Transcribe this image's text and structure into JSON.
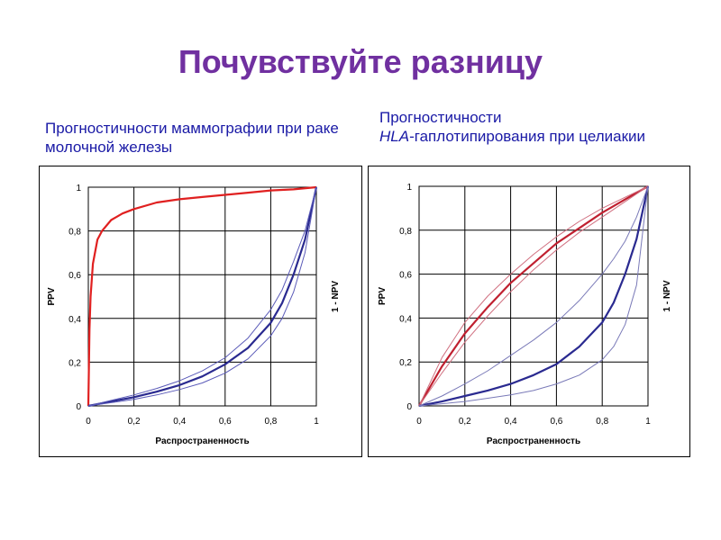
{
  "slide": {
    "title": "Почувствуйте разницу",
    "caption_left": "Прогностичности маммографии при раке молочной железы",
    "caption_right_line1": "Прогностичности",
    "caption_right_em": "HLA",
    "caption_right_rest": "-гаплотипирования при целиакии"
  },
  "colors": {
    "title": "#7030a0",
    "caption": "#1a1aa6",
    "ppv": "#e02020",
    "npv": "#2a2a90"
  },
  "chart_data": [
    {
      "type": "line",
      "xlabel": "Распространенность",
      "ylabel": "PPV",
      "y2label": "1 - NPV",
      "xlim": [
        0,
        1
      ],
      "ylim": [
        0,
        1
      ],
      "x_ticks": [
        "0",
        "0,2",
        "0,4",
        "0,6",
        "0,8",
        "1"
      ],
      "y_ticks": [
        "0",
        "0,2",
        "0,4",
        "0,6",
        "0,8",
        "1"
      ],
      "grid": true,
      "series": [
        {
          "role": "ppv",
          "color": "#e02020",
          "bold": true,
          "x": [
            0,
            0.005,
            0.01,
            0.02,
            0.04,
            0.06,
            0.1,
            0.15,
            0.2,
            0.3,
            0.4,
            0.5,
            0.6,
            0.7,
            0.8,
            0.9,
            1.0
          ],
          "y": [
            0,
            0.35,
            0.5,
            0.65,
            0.76,
            0.8,
            0.85,
            0.88,
            0.9,
            0.93,
            0.945,
            0.955,
            0.965,
            0.975,
            0.985,
            0.99,
            1.0
          ]
        },
        {
          "role": "npv",
          "color": "#2a2a90",
          "bold": true,
          "x": [
            0,
            0.1,
            0.2,
            0.3,
            0.4,
            0.5,
            0.6,
            0.7,
            0.8,
            0.85,
            0.9,
            0.95,
            1.0
          ],
          "y": [
            0,
            0.02,
            0.04,
            0.065,
            0.095,
            0.135,
            0.19,
            0.265,
            0.38,
            0.47,
            0.6,
            0.76,
            1.0
          ]
        },
        {
          "role": "npv-band",
          "color": "#5a5ab8",
          "bold": false,
          "x": [
            0,
            0.1,
            0.2,
            0.3,
            0.4,
            0.5,
            0.6,
            0.7,
            0.8,
            0.85,
            0.9,
            0.95,
            1.0
          ],
          "y": [
            0,
            0.025,
            0.05,
            0.08,
            0.115,
            0.16,
            0.22,
            0.31,
            0.44,
            0.53,
            0.66,
            0.8,
            1.0
          ]
        },
        {
          "role": "npv-band",
          "color": "#5a5ab8",
          "bold": false,
          "x": [
            0,
            0.1,
            0.2,
            0.3,
            0.4,
            0.5,
            0.6,
            0.7,
            0.8,
            0.85,
            0.9,
            0.95,
            1.0
          ],
          "y": [
            0,
            0.015,
            0.03,
            0.05,
            0.075,
            0.105,
            0.15,
            0.215,
            0.32,
            0.4,
            0.52,
            0.7,
            1.0
          ]
        }
      ]
    },
    {
      "type": "line",
      "xlabel": "Распространенность",
      "ylabel": "PPV",
      "y2label": "1 - NPV",
      "xlim": [
        0,
        1
      ],
      "ylim": [
        0,
        1
      ],
      "x_ticks": [
        "0",
        "0,2",
        "0,4",
        "0,6",
        "0,8",
        "1"
      ],
      "y_ticks": [
        "0",
        "0,2",
        "0,4",
        "0,6",
        "0,8",
        "1"
      ],
      "grid": true,
      "series": [
        {
          "role": "ppv",
          "color": "#c02030",
          "bold": true,
          "x": [
            0,
            0.1,
            0.2,
            0.3,
            0.4,
            0.5,
            0.6,
            0.7,
            0.8,
            0.9,
            1.0
          ],
          "y": [
            0,
            0.18,
            0.33,
            0.45,
            0.56,
            0.65,
            0.74,
            0.81,
            0.88,
            0.94,
            1.0
          ]
        },
        {
          "role": "ppv-band",
          "color": "#d07080",
          "bold": false,
          "x": [
            0,
            0.1,
            0.2,
            0.3,
            0.4,
            0.5,
            0.6,
            0.7,
            0.8,
            0.9,
            1.0
          ],
          "y": [
            0,
            0.22,
            0.38,
            0.5,
            0.6,
            0.69,
            0.77,
            0.84,
            0.9,
            0.95,
            1.0
          ]
        },
        {
          "role": "ppv-band",
          "color": "#d07080",
          "bold": false,
          "x": [
            0,
            0.1,
            0.2,
            0.3,
            0.4,
            0.5,
            0.6,
            0.7,
            0.8,
            0.9,
            1.0
          ],
          "y": [
            0,
            0.15,
            0.29,
            0.41,
            0.52,
            0.62,
            0.71,
            0.79,
            0.86,
            0.93,
            1.0
          ]
        },
        {
          "role": "npv",
          "color": "#2a2a90",
          "bold": true,
          "x": [
            0,
            0.1,
            0.2,
            0.3,
            0.4,
            0.5,
            0.6,
            0.7,
            0.8,
            0.85,
            0.9,
            0.95,
            1.0
          ],
          "y": [
            0,
            0.02,
            0.045,
            0.07,
            0.1,
            0.14,
            0.19,
            0.27,
            0.38,
            0.47,
            0.6,
            0.76,
            1.0
          ]
        },
        {
          "role": "npv-band",
          "color": "#7a7ab8",
          "bold": false,
          "x": [
            0,
            0.1,
            0.2,
            0.3,
            0.4,
            0.5,
            0.6,
            0.7,
            0.8,
            0.85,
            0.9,
            0.95,
            1.0
          ],
          "y": [
            0,
            0.045,
            0.1,
            0.16,
            0.23,
            0.3,
            0.38,
            0.48,
            0.6,
            0.67,
            0.75,
            0.86,
            1.0
          ]
        },
        {
          "role": "npv-band",
          "color": "#7a7ab8",
          "bold": false,
          "x": [
            0,
            0.1,
            0.2,
            0.3,
            0.4,
            0.5,
            0.6,
            0.7,
            0.8,
            0.85,
            0.9,
            0.95,
            1.0
          ],
          "y": [
            0,
            0.01,
            0.02,
            0.035,
            0.05,
            0.07,
            0.1,
            0.14,
            0.21,
            0.27,
            0.37,
            0.55,
            1.0
          ]
        }
      ]
    }
  ]
}
